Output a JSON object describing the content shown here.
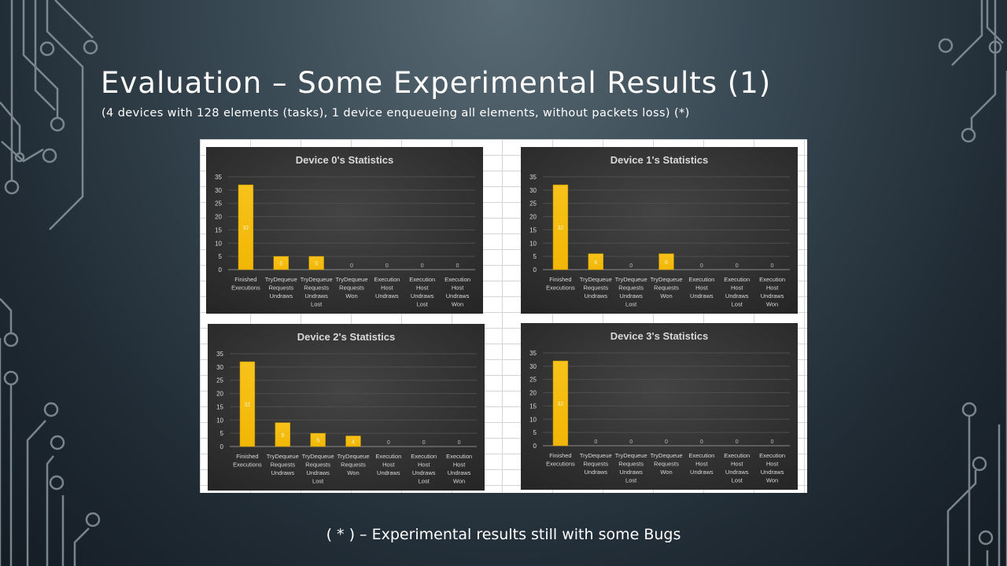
{
  "slide": {
    "title": "Evaluation – Some Experimental Results (1)",
    "subtitle": "(4 devices with 128 elements (tasks), 1 device enqueueing all elements, without packets loss) (*)",
    "footnote": "( * ) – Experimental results still with some Bugs"
  },
  "colors": {
    "bar": "#f2b705",
    "chart_bg": "#333333",
    "label": "#d9d9d9"
  },
  "chart_data": [
    {
      "type": "bar",
      "title": "Device 0's Statistics",
      "categories": [
        [
          "Finished",
          "Executions"
        ],
        [
          "TryDequeue",
          "Requests",
          "Undraws"
        ],
        [
          "TryDequeue",
          "Requests",
          "Undraws",
          "Lost"
        ],
        [
          "TryDequeue",
          "Requests",
          "Won"
        ],
        [
          "Execution",
          "Host",
          "Undraws"
        ],
        [
          "Execution",
          "Host",
          "Undraws",
          "Lost"
        ],
        [
          "Execution",
          "Host",
          "Undraws",
          "Won"
        ]
      ],
      "values": [
        32,
        5,
        5,
        0,
        0,
        0,
        0
      ],
      "yticks": [
        0,
        5,
        10,
        15,
        20,
        25,
        30,
        35
      ],
      "ylim": [
        0,
        35
      ],
      "grid": true
    },
    {
      "type": "bar",
      "title": "Device 1's Statistics",
      "categories": [
        [
          "Finished",
          "Executions"
        ],
        [
          "TryDequeue",
          "Requests",
          "Undraws"
        ],
        [
          "TryDequeue",
          "Requests",
          "Undraws",
          "Lost"
        ],
        [
          "TryDequeue",
          "Requests",
          "Won"
        ],
        [
          "Execution",
          "Host",
          "Undraws"
        ],
        [
          "Execution",
          "Host",
          "Undraws",
          "Lost"
        ],
        [
          "Execution",
          "Host",
          "Undraws",
          "Won"
        ]
      ],
      "values": [
        32,
        6,
        0,
        6,
        0,
        0,
        0
      ],
      "yticks": [
        0,
        5,
        10,
        15,
        20,
        25,
        30,
        35
      ],
      "ylim": [
        0,
        35
      ],
      "grid": true
    },
    {
      "type": "bar",
      "title": "Device 2's Statistics",
      "categories": [
        [
          "Finished",
          "Executions"
        ],
        [
          "TryDequeue",
          "Requests",
          "Undraws"
        ],
        [
          "TryDequeue",
          "Requests",
          "Undraws",
          "Lost"
        ],
        [
          "TryDequeue",
          "Requests",
          "Won"
        ],
        [
          "Execution",
          "Host",
          "Undraws"
        ],
        [
          "Execution",
          "Host",
          "Undraws",
          "Lost"
        ],
        [
          "Execution",
          "Host",
          "Undraws",
          "Won"
        ]
      ],
      "values": [
        32,
        9,
        5,
        4,
        0,
        0,
        0
      ],
      "yticks": [
        0,
        5,
        10,
        15,
        20,
        25,
        30,
        35
      ],
      "ylim": [
        0,
        35
      ],
      "grid": true
    },
    {
      "type": "bar",
      "title": "Device 3's Statistics",
      "categories": [
        [
          "Finished",
          "Executions"
        ],
        [
          "TryDequeue",
          "Requests",
          "Undraws"
        ],
        [
          "TryDequeue",
          "Requests",
          "Undraws",
          "Lost"
        ],
        [
          "TryDequeue",
          "Requests",
          "Won"
        ],
        [
          "Execution",
          "Host",
          "Undraws"
        ],
        [
          "Execution",
          "Host",
          "Undraws",
          "Lost"
        ],
        [
          "Execution",
          "Host",
          "Undraws",
          "Won"
        ]
      ],
      "values": [
        32,
        0,
        0,
        0,
        0,
        0,
        0
      ],
      "yticks": [
        0,
        5,
        10,
        15,
        20,
        25,
        30,
        35
      ],
      "ylim": [
        0,
        35
      ],
      "grid": true
    }
  ]
}
